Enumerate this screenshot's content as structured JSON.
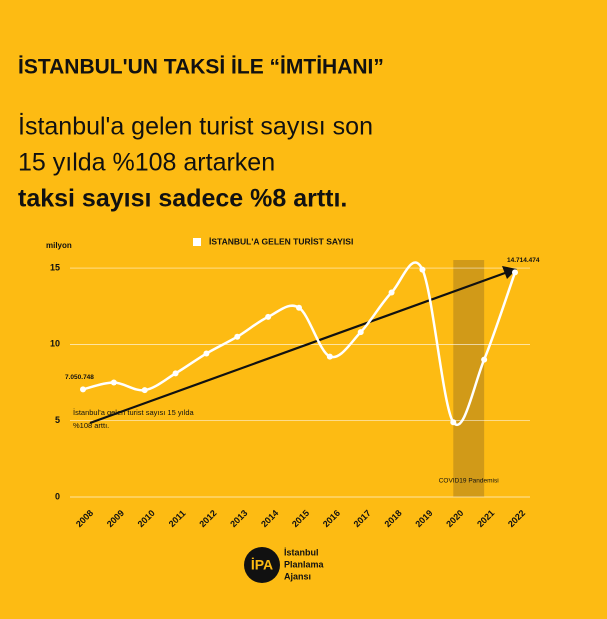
{
  "chart_data": {
    "type": "line",
    "title": "İSTANBUL'UN TAKSİ İLE “İMTİHANI”",
    "subtitle": [
      "İstanbul'a gelen turist sayısı son",
      "15 yılda %108 artarken"
    ],
    "highlight": "taksi sayısı sadece %8 arttı.",
    "y_label": "milyon",
    "categories": [
      "2008",
      "2009",
      "2010",
      "2011",
      "2012",
      "2013",
      "2014",
      "2015",
      "2016",
      "2017",
      "2018",
      "2019",
      "2020",
      "2021",
      "2022"
    ],
    "series": [
      {
        "name": "İSTANBUL'A GELEN TURİST SAYISI",
        "color": "#ffffff",
        "values": [
          7.050748,
          7.5,
          7.0,
          8.1,
          9.4,
          10.5,
          11.8,
          12.4,
          9.2,
          10.8,
          13.4,
          14.9,
          4.9,
          9.0,
          14.714474
        ],
        "value_labels": [
          "7.050.748",
          null,
          null,
          null,
          null,
          null,
          null,
          null,
          null,
          null,
          null,
          null,
          null,
          null,
          "14.714.474"
        ]
      }
    ],
    "ylim": [
      0,
      15.2
    ],
    "yticks": [
      0,
      5,
      10,
      15
    ],
    "grid": true,
    "annotation": [
      "İstanbul'a gelen turist sayısı 15 yılda",
      "%108 arttı."
    ],
    "shade": {
      "from": "2020",
      "to": "2021",
      "label": "COVID19 Pandemisi",
      "color": "#c9941a"
    },
    "background": "#fdbb13"
  },
  "logo": {
    "mark": "İPA",
    "lines": [
      "İstanbul",
      "Planlama",
      "Ajansı"
    ]
  }
}
